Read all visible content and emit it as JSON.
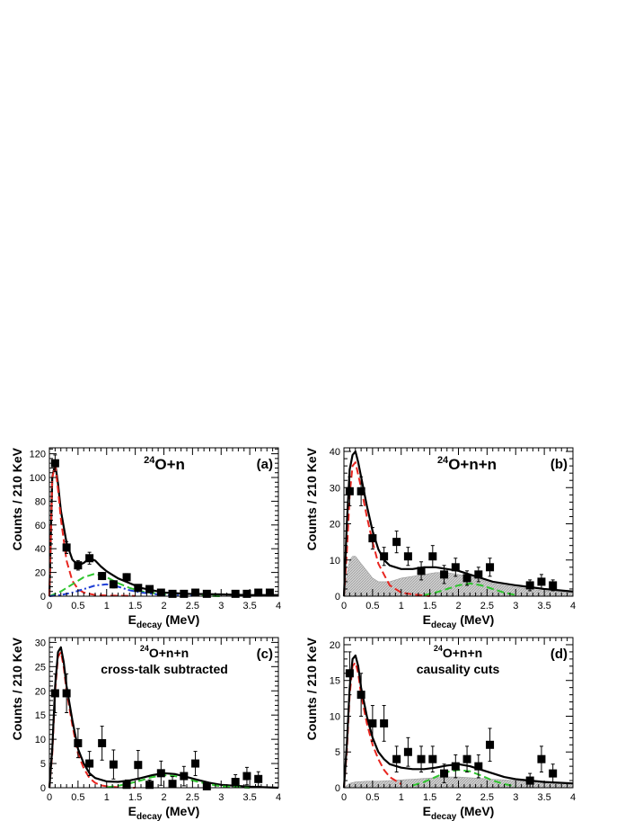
{
  "chart_data": [
    {
      "panel": "a",
      "type": "scatter",
      "title": "O+n",
      "title_sup": "24",
      "subtitle": "",
      "panel_label": "(a)",
      "xlabel": "E",
      "xlabel_sub": "decay",
      "xlabel_unit": " (MeV)",
      "ylabel": "Counts / 210 KeV",
      "xlim": [
        0,
        4
      ],
      "ylim": [
        0,
        125
      ],
      "xticks": [
        "0",
        "0.5",
        "1",
        "1.5",
        "2",
        "2.5",
        "3",
        "3.5",
        "4"
      ],
      "yticks": [
        "0",
        "20",
        "40",
        "60",
        "80",
        "100",
        "120"
      ],
      "ytick_values": [
        0,
        20,
        40,
        60,
        80,
        100,
        120
      ],
      "points": [
        {
          "x": 0.1,
          "y": 112,
          "err": 7
        },
        {
          "x": 0.3,
          "y": 41,
          "err": 5
        },
        {
          "x": 0.5,
          "y": 26,
          "err": 4
        },
        {
          "x": 0.7,
          "y": 32,
          "err": 5
        },
        {
          "x": 0.92,
          "y": 17,
          "err": 3
        },
        {
          "x": 1.12,
          "y": 10,
          "err": 3
        },
        {
          "x": 1.35,
          "y": 16,
          "err": 3
        },
        {
          "x": 1.55,
          "y": 7,
          "err": 2
        },
        {
          "x": 1.75,
          "y": 6,
          "err": 2
        },
        {
          "x": 1.95,
          "y": 3,
          "err": 1.5
        },
        {
          "x": 2.15,
          "y": 2,
          "err": 1
        },
        {
          "x": 2.35,
          "y": 2,
          "err": 1
        },
        {
          "x": 2.55,
          "y": 3,
          "err": 1.5
        },
        {
          "x": 2.75,
          "y": 2,
          "err": 1
        },
        {
          "x": 3.25,
          "y": 2,
          "err": 1
        },
        {
          "x": 3.45,
          "y": 2,
          "err": 1
        },
        {
          "x": 3.65,
          "y": 3,
          "err": 1
        },
        {
          "x": 3.85,
          "y": 3,
          "err": 1
        }
      ],
      "curves": [
        {
          "style": "total",
          "color": "#000000",
          "x": [
            0,
            0.05,
            0.1,
            0.15,
            0.2,
            0.3,
            0.4,
            0.5,
            0.6,
            0.7,
            0.8,
            0.9,
            1.0,
            1.2,
            1.4,
            1.6,
            1.8,
            2.0,
            2.4,
            3.0,
            3.5,
            4.0
          ],
          "y": [
            0,
            100,
            112,
            95,
            72,
            45,
            31,
            26,
            28,
            32,
            30,
            25,
            21,
            15,
            11,
            7,
            5,
            3,
            2,
            1.5,
            1,
            1
          ]
        },
        {
          "style": "dashed",
          "color": "#e8251f",
          "x": [
            0,
            0.05,
            0.1,
            0.15,
            0.2,
            0.3,
            0.4,
            0.5,
            0.6,
            0.8,
            1.0,
            1.5
          ],
          "y": [
            0,
            100,
            110,
            90,
            65,
            30,
            13,
            6,
            3,
            1,
            0.5,
            0.2
          ]
        },
        {
          "style": "dashed",
          "color": "#2ec52e",
          "x": [
            0,
            0.2,
            0.4,
            0.6,
            0.8,
            1.0,
            1.2,
            1.4,
            1.6,
            2.0,
            2.5,
            3.0
          ],
          "y": [
            0,
            4,
            10,
            16,
            19,
            16,
            11,
            7,
            4,
            1.5,
            0.5,
            0
          ]
        },
        {
          "style": "dashdot",
          "color": "#1f3fd6",
          "x": [
            0,
            0.2,
            0.4,
            0.6,
            0.8,
            1.0,
            1.2,
            1.4,
            1.6,
            2.0,
            2.5
          ],
          "y": [
            0,
            1,
            3,
            6,
            9,
            10,
            8,
            5,
            3,
            1,
            0.3
          ]
        }
      ]
    },
    {
      "panel": "b",
      "type": "scatter",
      "title": "O+n+n",
      "title_sup": "24",
      "subtitle": "",
      "panel_label": "(b)",
      "xlabel": "E",
      "xlabel_sub": "decay",
      "xlabel_unit": " (MeV)",
      "ylabel": "Counts / 210 KeV",
      "xlim": [
        0,
        4
      ],
      "ylim": [
        0,
        41
      ],
      "xticks": [
        "0",
        "0.5",
        "1",
        "1.5",
        "2",
        "2.5",
        "3",
        "3.5",
        "4"
      ],
      "yticks": [
        "0",
        "10",
        "20",
        "30",
        "40"
      ],
      "ytick_values": [
        0,
        10,
        20,
        30,
        40
      ],
      "points": [
        {
          "x": 0.1,
          "y": 29,
          "err": 4
        },
        {
          "x": 0.3,
          "y": 29,
          "err": 4
        },
        {
          "x": 0.5,
          "y": 16,
          "err": 3
        },
        {
          "x": 0.7,
          "y": 11,
          "err": 2.5
        },
        {
          "x": 0.92,
          "y": 15,
          "err": 3
        },
        {
          "x": 1.12,
          "y": 11,
          "err": 2.5
        },
        {
          "x": 1.35,
          "y": 7,
          "err": 2.5
        },
        {
          "x": 1.55,
          "y": 11,
          "err": 3
        },
        {
          "x": 1.75,
          "y": 6,
          "err": 2.5
        },
        {
          "x": 1.95,
          "y": 8,
          "err": 2.5
        },
        {
          "x": 2.15,
          "y": 5,
          "err": 2
        },
        {
          "x": 2.35,
          "y": 6,
          "err": 2
        },
        {
          "x": 2.55,
          "y": 8,
          "err": 2.5
        },
        {
          "x": 3.25,
          "y": 3,
          "err": 1.5
        },
        {
          "x": 3.45,
          "y": 4,
          "err": 2
        },
        {
          "x": 3.65,
          "y": 3,
          "err": 1.5
        }
      ],
      "band": {
        "color": "#c4c4c4",
        "x": [
          0,
          0.05,
          0.1,
          0.15,
          0.2,
          0.3,
          0.4,
          0.5,
          0.6,
          0.8,
          1.0,
          1.2,
          1.4,
          1.6,
          1.8,
          2.0,
          2.2,
          2.4,
          2.6,
          2.8,
          3.0,
          3.5,
          4.0
        ],
        "y": [
          0,
          6,
          10,
          11,
          11,
          9,
          7,
          5,
          4,
          4,
          5,
          5.5,
          6,
          6.5,
          6.5,
          6,
          5.5,
          4.5,
          3.5,
          3,
          2.5,
          1.5,
          1
        ]
      },
      "curves": [
        {
          "style": "dashed",
          "color": "#e8251f",
          "x": [
            0,
            0.05,
            0.1,
            0.15,
            0.2,
            0.3,
            0.4,
            0.5,
            0.6,
            0.7,
            0.8,
            0.9,
            1.0,
            1.2,
            1.5
          ],
          "y": [
            0,
            12,
            28,
            36,
            37,
            30,
            22,
            15,
            9,
            6,
            3,
            2,
            1,
            0.5,
            0
          ]
        },
        {
          "style": "total",
          "color": "#000000",
          "x": [
            0,
            0.05,
            0.1,
            0.15,
            0.2,
            0.25,
            0.3,
            0.4,
            0.5,
            0.6,
            0.7,
            0.8,
            1.0,
            1.2,
            1.4,
            1.6,
            1.8,
            2.0,
            2.2,
            2.4,
            2.6,
            2.8,
            3.0,
            3.5,
            4.0
          ],
          "y": [
            0,
            20,
            35,
            39,
            40,
            37,
            33,
            25,
            18,
            13,
            10,
            8.5,
            7.5,
            7.5,
            8,
            8,
            7.5,
            7,
            6,
            5,
            4,
            3.5,
            3,
            2,
            1.3
          ]
        },
        {
          "style": "dashed",
          "color": "#2ec52e",
          "x": [
            1.4,
            1.6,
            1.8,
            2.0,
            2.2,
            2.4,
            2.6,
            2.8,
            3.0
          ],
          "y": [
            0.3,
            1,
            2,
            3,
            3.5,
            3,
            2,
            1,
            0.3
          ]
        }
      ]
    },
    {
      "panel": "c",
      "type": "scatter",
      "title": "O+n+n",
      "title_sup": "24",
      "subtitle": "cross-talk subtracted",
      "panel_label": "(c)",
      "xlabel": "E",
      "xlabel_sub": "decay",
      "xlabel_unit": " (MeV)",
      "ylabel": "Counts / 210 KeV",
      "xlim": [
        0,
        4
      ],
      "ylim": [
        0,
        31
      ],
      "xticks": [
        "0",
        "0.5",
        "1",
        "1.5",
        "2",
        "2.5",
        "3",
        "3.5",
        "4"
      ],
      "yticks": [
        "0",
        "5",
        "10",
        "15",
        "20",
        "25",
        "30"
      ],
      "ytick_values": [
        0,
        5,
        10,
        15,
        20,
        25,
        30
      ],
      "points": [
        {
          "x": 0.1,
          "y": 19.5,
          "err": 4
        },
        {
          "x": 0.3,
          "y": 19.5,
          "err": 4
        },
        {
          "x": 0.5,
          "y": 9.2,
          "err": 3
        },
        {
          "x": 0.7,
          "y": 5,
          "err": 2.5
        },
        {
          "x": 0.92,
          "y": 9.2,
          "err": 3.5
        },
        {
          "x": 1.12,
          "y": 4.8,
          "err": 3
        },
        {
          "x": 1.35,
          "y": 0.6,
          "err": 1
        },
        {
          "x": 1.55,
          "y": 4.7,
          "err": 3
        },
        {
          "x": 1.75,
          "y": 0.6,
          "err": 1
        },
        {
          "x": 1.95,
          "y": 3,
          "err": 2.5
        },
        {
          "x": 2.15,
          "y": 0.8,
          "err": 1.5
        },
        {
          "x": 2.35,
          "y": 2.4,
          "err": 2
        },
        {
          "x": 2.55,
          "y": 5,
          "err": 2.5
        },
        {
          "x": 2.75,
          "y": 0.3,
          "err": 0.8
        },
        {
          "x": 3.25,
          "y": 1.2,
          "err": 1.5
        },
        {
          "x": 3.45,
          "y": 2.4,
          "err": 1.8
        },
        {
          "x": 3.65,
          "y": 1.8,
          "err": 1.5
        }
      ],
      "curves": [
        {
          "style": "dashed",
          "color": "#e8251f",
          "x": [
            0,
            0.05,
            0.1,
            0.15,
            0.2,
            0.25,
            0.3,
            0.4,
            0.5,
            0.6,
            0.7,
            0.8,
            0.9,
            1.0,
            1.2,
            1.5
          ],
          "y": [
            0,
            7,
            20,
            27,
            28,
            25,
            20,
            13,
            7,
            4,
            2,
            1,
            0.5,
            0.3,
            0.1,
            0
          ]
        },
        {
          "style": "total",
          "color": "#000000",
          "x": [
            0,
            0.05,
            0.1,
            0.15,
            0.2,
            0.25,
            0.3,
            0.4,
            0.5,
            0.6,
            0.7,
            0.8,
            1.0,
            1.2,
            1.4,
            1.6,
            1.8,
            2.0,
            2.2,
            2.4,
            2.6,
            2.8,
            3.0,
            3.5,
            4.0
          ],
          "y": [
            0,
            8,
            21,
            28,
            29,
            26,
            21,
            14,
            8,
            5,
            3,
            2,
            1.3,
            1.2,
            1.5,
            2,
            2.6,
            3,
            2.8,
            2.2,
            1.6,
            1,
            0.6,
            0.2,
            0
          ]
        },
        {
          "style": "dashed",
          "color": "#2ec52e",
          "x": [
            1.0,
            1.2,
            1.4,
            1.6,
            1.8,
            2.0,
            2.2,
            2.4,
            2.6,
            2.8,
            3.0,
            3.5
          ],
          "y": [
            0.1,
            0.4,
            0.9,
            1.5,
            2.2,
            2.6,
            2.4,
            1.8,
            1.2,
            0.7,
            0.3,
            0
          ]
        }
      ]
    },
    {
      "panel": "d",
      "type": "scatter",
      "title": "O+n+n",
      "title_sup": "24",
      "subtitle": "causality cuts",
      "panel_label": "(d)",
      "xlabel": "E",
      "xlabel_sub": "decay",
      "xlabel_unit": " (MeV)",
      "ylabel": "Counts / 210 KeV",
      "xlim": [
        0,
        4
      ],
      "ylim": [
        0,
        21
      ],
      "xticks": [
        "0",
        "0.5",
        "1",
        "1.5",
        "2",
        "2.5",
        "3",
        "3.5",
        "4"
      ],
      "yticks": [
        "0",
        "5",
        "10",
        "15",
        "20"
      ],
      "ytick_values": [
        0,
        5,
        10,
        15,
        20
      ],
      "points": [
        {
          "x": 0.1,
          "y": 16,
          "err": 3
        },
        {
          "x": 0.3,
          "y": 13,
          "err": 3
        },
        {
          "x": 0.5,
          "y": 9,
          "err": 2.5
        },
        {
          "x": 0.7,
          "y": 9,
          "err": 2.5
        },
        {
          "x": 0.92,
          "y": 4,
          "err": 1.8
        },
        {
          "x": 1.12,
          "y": 5,
          "err": 2
        },
        {
          "x": 1.35,
          "y": 4,
          "err": 1.8
        },
        {
          "x": 1.55,
          "y": 4,
          "err": 1.8
        },
        {
          "x": 1.75,
          "y": 2,
          "err": 1.3
        },
        {
          "x": 1.95,
          "y": 3,
          "err": 1.6
        },
        {
          "x": 2.15,
          "y": 4,
          "err": 1.8
        },
        {
          "x": 2.35,
          "y": 3,
          "err": 1.6
        },
        {
          "x": 2.55,
          "y": 6,
          "err": 2.3
        },
        {
          "x": 3.25,
          "y": 1,
          "err": 1
        },
        {
          "x": 3.45,
          "y": 4,
          "err": 1.8
        },
        {
          "x": 3.65,
          "y": 2,
          "err": 1.3
        }
      ],
      "band": {
        "color": "#c4c4c4",
        "x": [
          0,
          0.1,
          0.2,
          0.4,
          0.6,
          0.8,
          1.0,
          1.2,
          1.4,
          1.6,
          1.8,
          2.0,
          2.2,
          2.4,
          2.6,
          3.0,
          3.5,
          4.0
        ],
        "y": [
          0,
          0.6,
          0.8,
          0.9,
          0.9,
          1.0,
          1.1,
          1.2,
          1.3,
          1.4,
          1.5,
          1.5,
          1.4,
          1.3,
          1.2,
          1.0,
          0.8,
          0.6
        ]
      },
      "curves": [
        {
          "style": "dashed",
          "color": "#e8251f",
          "x": [
            0,
            0.05,
            0.1,
            0.15,
            0.2,
            0.25,
            0.3,
            0.4,
            0.5,
            0.6,
            0.7,
            0.8,
            0.9,
            1.0
          ],
          "y": [
            0,
            5,
            13,
            17,
            17.5,
            16,
            13,
            9,
            6,
            4,
            2.5,
            1.5,
            1,
            0.5
          ]
        },
        {
          "style": "total",
          "color": "#000000",
          "x": [
            0,
            0.05,
            0.1,
            0.15,
            0.2,
            0.25,
            0.3,
            0.4,
            0.5,
            0.6,
            0.7,
            0.8,
            1.0,
            1.2,
            1.4,
            1.6,
            1.8,
            2.0,
            2.2,
            2.4,
            2.6,
            2.8,
            3.0,
            3.5,
            4.0
          ],
          "y": [
            0,
            6,
            14,
            18,
            18.5,
            17,
            14,
            10,
            7,
            5,
            4,
            3.3,
            2.8,
            2.6,
            2.6,
            2.8,
            3.1,
            3.3,
            3,
            2.5,
            2,
            1.5,
            1.2,
            0.8,
            0.6
          ]
        },
        {
          "style": "dashed",
          "color": "#2ec52e",
          "x": [
            1.2,
            1.4,
            1.6,
            1.8,
            2.0,
            2.2,
            2.4,
            2.6,
            2.8,
            3.0
          ],
          "y": [
            0.3,
            0.8,
            1.5,
            2.2,
            2.5,
            2.3,
            1.7,
            1.0,
            0.5,
            0.2
          ]
        }
      ]
    }
  ]
}
